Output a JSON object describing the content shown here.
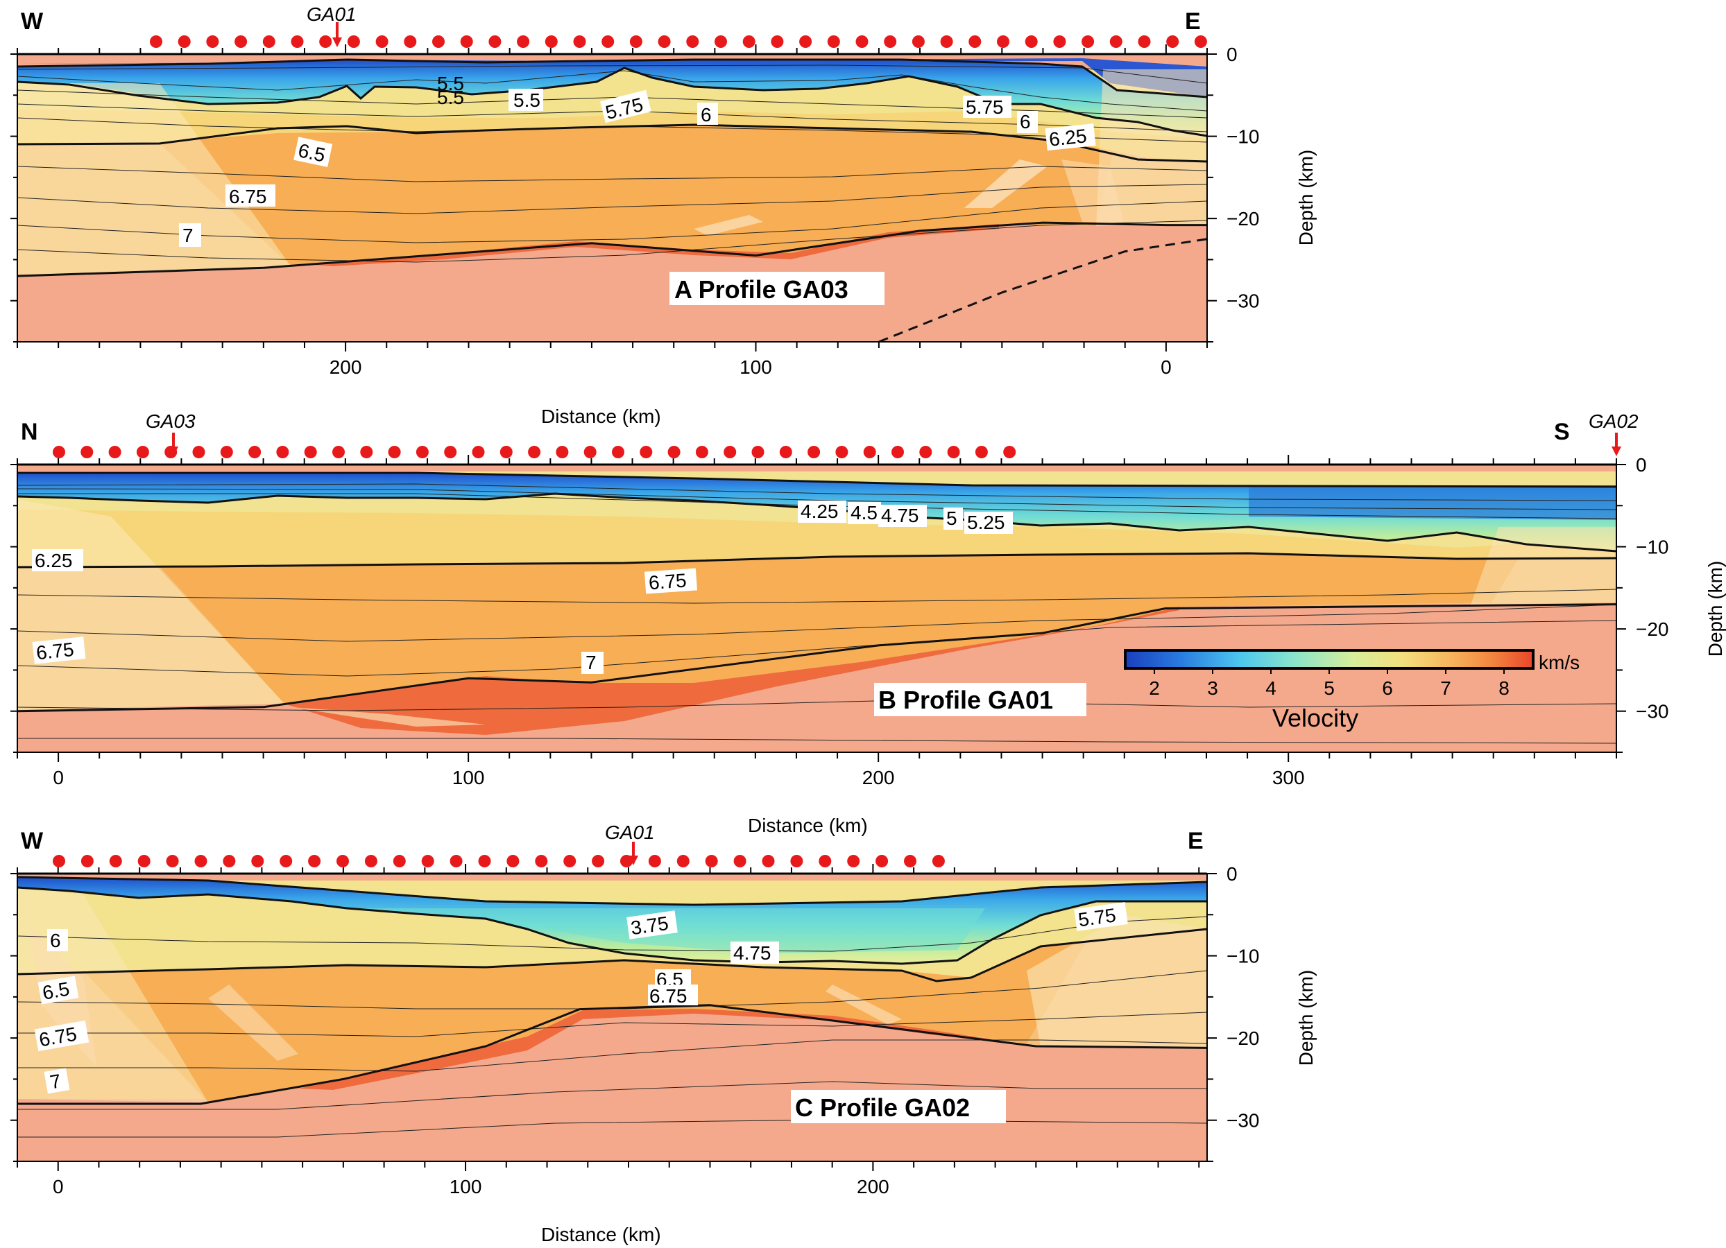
{
  "figure": {
    "velocity_colorbar": {
      "unit": "km/s",
      "title": "Velocity",
      "ticks": [
        "2",
        "3",
        "4",
        "5",
        "6",
        "7",
        "8"
      ],
      "tick_values": [
        2,
        3,
        4,
        5,
        6,
        7,
        8
      ],
      "range": [
        1.5,
        8.5
      ]
    },
    "axis_titles": {
      "x": "Distance (km)",
      "y": "Depth (km)"
    },
    "depth_ticks": [
      "0",
      "−10",
      "−20",
      "−30"
    ],
    "depth_tick_values": [
      0,
      -10,
      -20,
      -30
    ],
    "colors": {
      "station": "#e8191a",
      "moho_top": "#ef6a3c",
      "mantle": "#f4a98d",
      "crust": "#f7bd69"
    }
  },
  "panels": [
    {
      "id": "A",
      "title": "A Profile GA03",
      "left_end": "W",
      "right_end": "E",
      "x_ticks": [
        "200",
        "100",
        "0"
      ],
      "x_tick_values": [
        200,
        100,
        0
      ],
      "x_range": [
        280,
        -10
      ],
      "depth_range": [
        0,
        35
      ],
      "station_count": 38,
      "crossing": {
        "label": "GA01",
        "at_km": 202
      },
      "contour_labels": [
        "5.5",
        "5.5",
        "5.75",
        "6",
        "5.75",
        "6",
        "6.25",
        "6.5",
        "6.75",
        "7",
        "5.5"
      ],
      "moho_depth_km": [
        [
          280,
          27
        ],
        [
          220,
          26
        ],
        [
          180,
          24.5
        ],
        [
          140,
          23
        ],
        [
          100,
          24.5
        ],
        [
          60,
          21.5
        ],
        [
          30,
          20.5
        ],
        [
          0,
          20.8
        ],
        [
          -10,
          20.8
        ]
      ],
      "dashed_line_km": [
        [
          70,
          35
        ],
        [
          40,
          29
        ],
        [
          10,
          24
        ],
        [
          -10,
          22.5
        ]
      ]
    },
    {
      "id": "B",
      "title": "B Profile GA01",
      "left_end": "N",
      "right_end": "S",
      "x_ticks": [
        "0",
        "100",
        "200",
        "300"
      ],
      "x_tick_values": [
        0,
        100,
        200,
        300
      ],
      "x_range": [
        -10,
        380
      ],
      "depth_range": [
        0,
        35
      ],
      "station_count": 35,
      "crossing_left": {
        "label": "GA03",
        "at_km": 28
      },
      "crossing_right": {
        "label": "GA02",
        "at_km": 380
      },
      "contour_labels": [
        "4.25",
        "4.5",
        "4.75",
        "5",
        "5.25",
        "6.25",
        "6.75",
        "6.75",
        "7"
      ],
      "moho_depth_km": [
        [
          -10,
          30
        ],
        [
          50,
          29.5
        ],
        [
          100,
          26
        ],
        [
          130,
          26.5
        ],
        [
          200,
          22
        ],
        [
          240,
          20.5
        ],
        [
          270,
          17.5
        ],
        [
          380,
          17
        ]
      ]
    },
    {
      "id": "C",
      "title": "C Profile GA02",
      "left_end": "W",
      "right_end": "E",
      "x_ticks": [
        "0",
        "100",
        "200"
      ],
      "x_tick_values": [
        0,
        100,
        200
      ],
      "x_range": [
        -10,
        282
      ],
      "depth_range": [
        0,
        35
      ],
      "station_count": 32,
      "crossing": {
        "label": "GA01",
        "at_km": 140
      },
      "contour_labels": [
        "3.75",
        "4.75",
        "5.75",
        "6",
        "6.5",
        "6.5",
        "6.75",
        "6.75",
        "7"
      ],
      "moho_depth_km": [
        [
          -10,
          28
        ],
        [
          35,
          28
        ],
        [
          70,
          25
        ],
        [
          105,
          21
        ],
        [
          128,
          16.5
        ],
        [
          160,
          16
        ],
        [
          240,
          21
        ],
        [
          282,
          21.2
        ]
      ]
    }
  ]
}
